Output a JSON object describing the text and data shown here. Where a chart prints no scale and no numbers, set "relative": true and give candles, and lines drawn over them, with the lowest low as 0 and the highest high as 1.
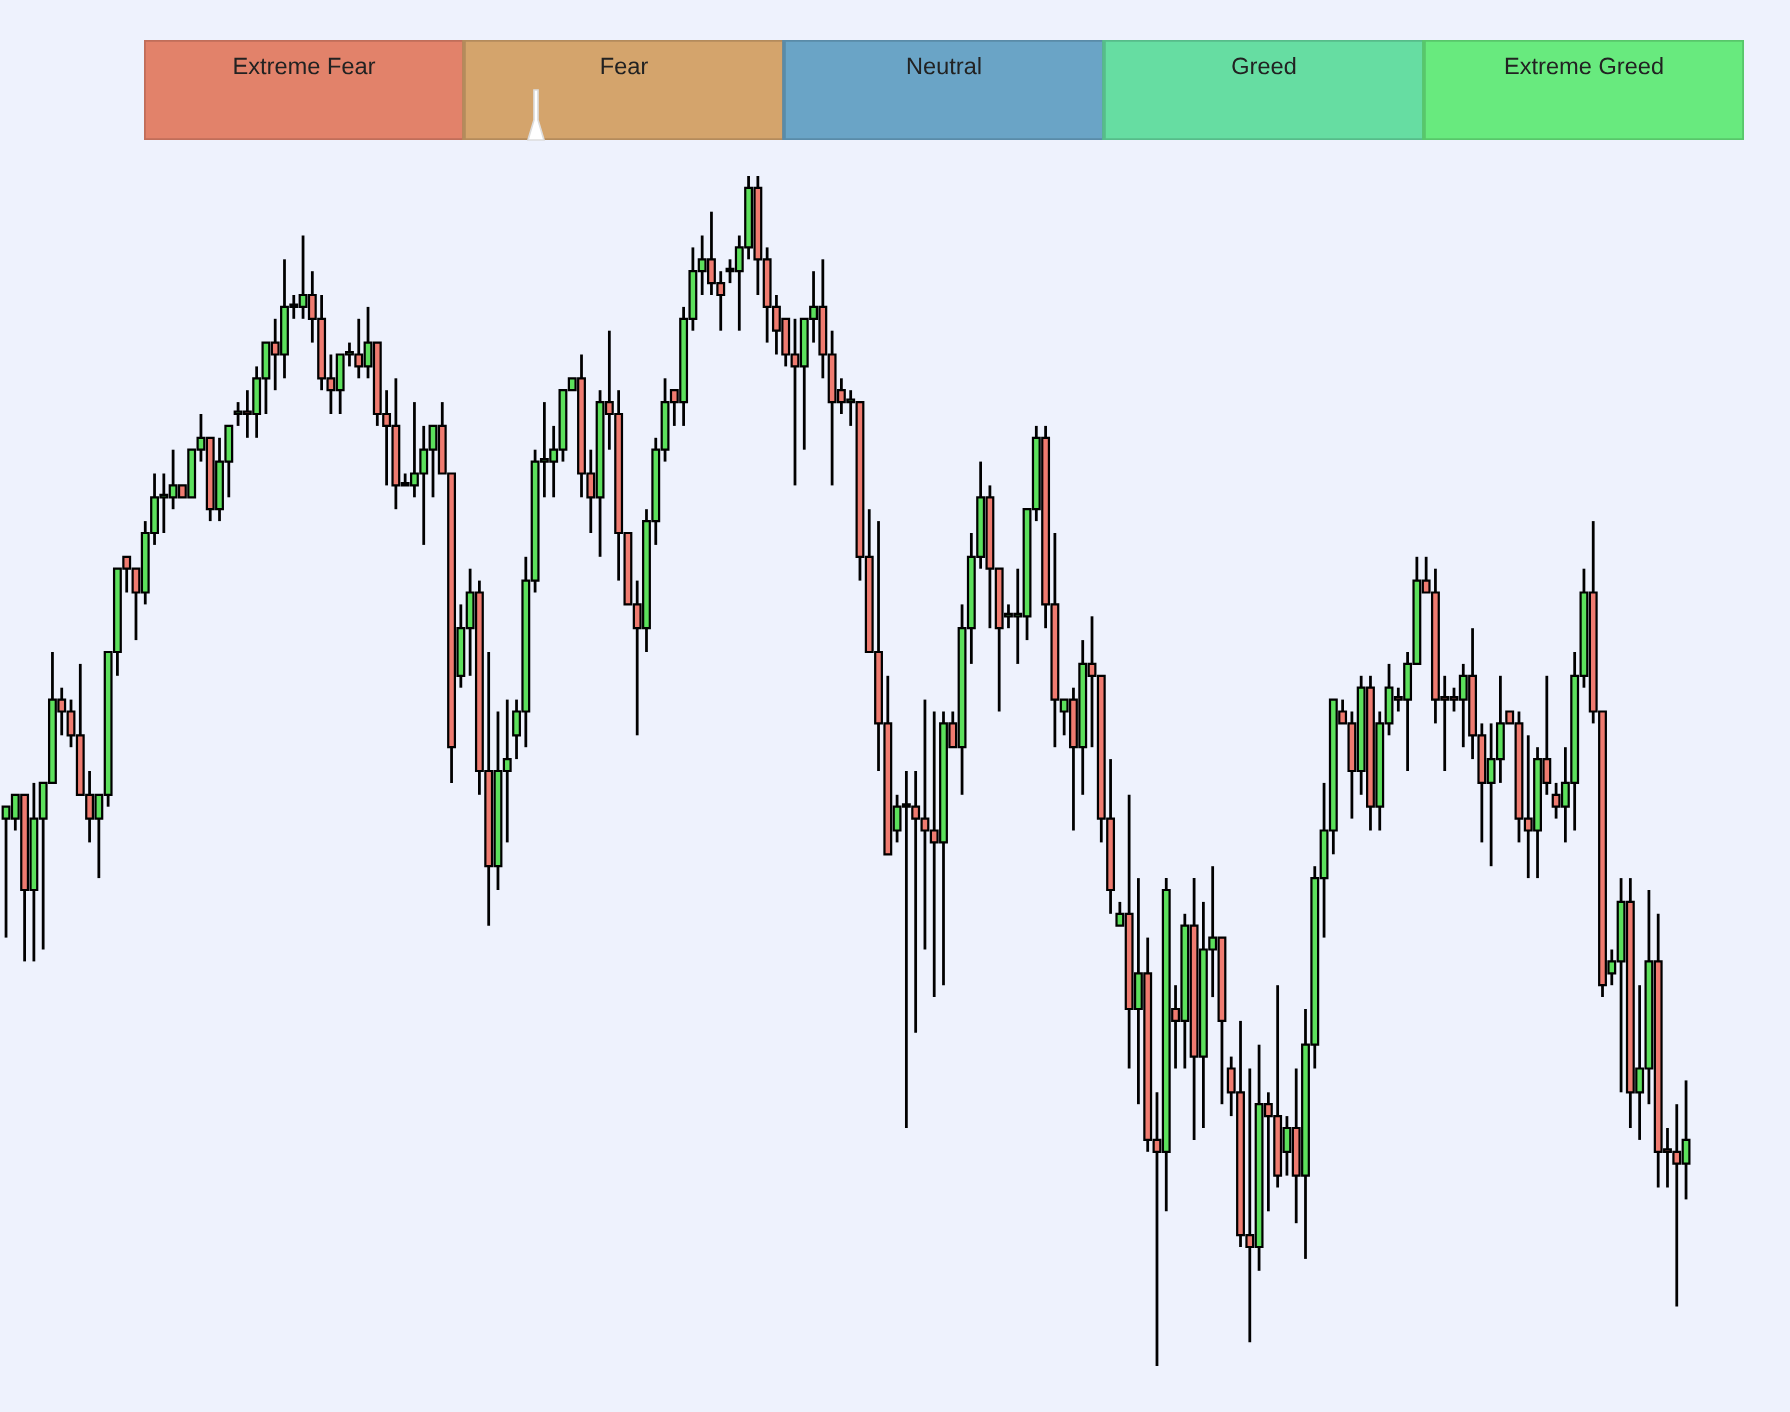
{
  "chart_data": [
    {
      "type": "other",
      "categories": [
        "Extreme Fear",
        "Fear",
        "Neutral",
        "Greed",
        "Extreme Greed"
      ],
      "colors": [
        "#e2826a",
        "#d4a46c",
        "#6aa4c6",
        "#66dda2",
        "#68ea7e"
      ]
    },
    {
      "type": "candlestick",
      "relative": true,
      "categories": [
        null,
        null,
        null,
        null,
        null,
        null,
        null,
        null,
        null,
        null,
        null,
        null,
        null,
        null,
        null,
        null,
        null,
        null,
        null,
        null,
        null,
        null,
        null,
        null,
        null,
        null,
        null,
        null,
        null,
        null,
        null,
        null,
        null,
        null,
        null,
        null,
        null,
        null,
        null,
        null,
        null,
        null,
        null,
        null,
        null,
        null,
        null,
        null,
        null,
        null,
        null,
        null,
        null,
        null,
        null,
        null,
        null,
        null,
        null,
        null,
        null,
        null,
        null,
        null,
        null,
        null,
        null,
        null,
        null,
        null,
        null,
        null,
        null,
        null,
        null,
        null,
        null,
        null,
        null,
        null,
        null,
        null,
        null,
        null,
        null,
        null,
        null,
        null,
        null,
        null,
        null,
        null,
        null,
        null,
        null,
        null,
        null,
        null,
        null,
        null,
        null,
        null,
        null,
        null,
        null,
        null,
        null,
        null,
        null,
        null,
        null,
        null,
        null,
        null,
        null,
        null,
        null,
        null,
        null,
        null,
        null,
        null,
        null,
        null,
        null,
        null,
        null,
        null,
        null,
        null,
        null,
        null,
        null,
        null,
        null,
        null,
        null,
        null,
        null,
        null,
        null,
        null,
        null,
        null,
        null,
        null,
        null,
        null,
        null,
        null,
        null,
        null,
        null,
        null,
        null,
        null,
        null,
        null,
        null,
        null,
        null,
        null,
        null,
        null,
        null,
        null,
        null,
        null,
        null,
        null,
        null,
        null,
        null,
        null,
        null,
        null,
        null,
        null,
        null,
        null,
        null,
        null
      ],
      "ohlc": [
        [
          0.46,
          0.47,
          0.36,
          0.47
        ],
        [
          0.46,
          0.48,
          0.45,
          0.48
        ],
        [
          0.48,
          0.48,
          0.34,
          0.4
        ],
        [
          0.4,
          0.49,
          0.34,
          0.46
        ],
        [
          0.46,
          0.49,
          0.35,
          0.49
        ],
        [
          0.49,
          0.6,
          0.49,
          0.56
        ],
        [
          0.56,
          0.57,
          0.53,
          0.55
        ],
        [
          0.55,
          0.56,
          0.52,
          0.53
        ],
        [
          0.53,
          0.59,
          0.48,
          0.48
        ],
        [
          0.48,
          0.5,
          0.44,
          0.46
        ],
        [
          0.46,
          0.48,
          0.41,
          0.48
        ],
        [
          0.48,
          0.6,
          0.47,
          0.6
        ],
        [
          0.6,
          0.67,
          0.58,
          0.67
        ],
        [
          0.68,
          0.68,
          0.65,
          0.67
        ],
        [
          0.67,
          0.67,
          0.61,
          0.65
        ],
        [
          0.65,
          0.71,
          0.64,
          0.7
        ],
        [
          0.7,
          0.75,
          0.69,
          0.73
        ],
        [
          0.73,
          0.75,
          0.7,
          0.73
        ],
        [
          0.73,
          0.77,
          0.72,
          0.74
        ],
        [
          0.74,
          0.74,
          0.73,
          0.73
        ],
        [
          0.73,
          0.77,
          0.73,
          0.77
        ],
        [
          0.77,
          0.8,
          0.76,
          0.78
        ],
        [
          0.78,
          0.78,
          0.71,
          0.72
        ],
        [
          0.72,
          0.78,
          0.71,
          0.76
        ],
        [
          0.76,
          0.79,
          0.73,
          0.79
        ],
        [
          0.8,
          0.81,
          0.79,
          0.8
        ],
        [
          0.8,
          0.82,
          0.78,
          0.8
        ],
        [
          0.8,
          0.84,
          0.78,
          0.83
        ],
        [
          0.83,
          0.86,
          0.8,
          0.86
        ],
        [
          0.86,
          0.88,
          0.82,
          0.85
        ],
        [
          0.85,
          0.93,
          0.83,
          0.89
        ],
        [
          0.89,
          0.9,
          0.88,
          0.89
        ],
        [
          0.89,
          0.95,
          0.88,
          0.9
        ],
        [
          0.9,
          0.92,
          0.86,
          0.88
        ],
        [
          0.88,
          0.9,
          0.82,
          0.83
        ],
        [
          0.83,
          0.85,
          0.8,
          0.82
        ],
        [
          0.82,
          0.85,
          0.8,
          0.85
        ],
        [
          0.85,
          0.86,
          0.84,
          0.85
        ],
        [
          0.85,
          0.88,
          0.83,
          0.84
        ],
        [
          0.84,
          0.89,
          0.83,
          0.86
        ],
        [
          0.86,
          0.86,
          0.79,
          0.8
        ],
        [
          0.8,
          0.82,
          0.74,
          0.79
        ],
        [
          0.79,
          0.83,
          0.72,
          0.74
        ],
        [
          0.74,
          0.75,
          0.74,
          0.74
        ],
        [
          0.74,
          0.81,
          0.73,
          0.75
        ],
        [
          0.75,
          0.79,
          0.69,
          0.77
        ],
        [
          0.77,
          0.79,
          0.73,
          0.79
        ],
        [
          0.79,
          0.81,
          0.75,
          0.75
        ],
        [
          0.75,
          0.75,
          0.49,
          0.52
        ],
        [
          0.58,
          0.64,
          0.57,
          0.62
        ],
        [
          0.62,
          0.67,
          0.58,
          0.65
        ],
        [
          0.65,
          0.66,
          0.48,
          0.5
        ],
        [
          0.5,
          0.6,
          0.37,
          0.42
        ],
        [
          0.42,
          0.55,
          0.4,
          0.5
        ],
        [
          0.5,
          0.56,
          0.44,
          0.51
        ],
        [
          0.53,
          0.56,
          0.51,
          0.55
        ],
        [
          0.55,
          0.68,
          0.52,
          0.66
        ],
        [
          0.66,
          0.77,
          0.65,
          0.76
        ],
        [
          0.76,
          0.81,
          0.73,
          0.76
        ],
        [
          0.76,
          0.79,
          0.73,
          0.77
        ],
        [
          0.77,
          0.82,
          0.76,
          0.82
        ],
        [
          0.82,
          0.83,
          0.82,
          0.83
        ],
        [
          0.83,
          0.85,
          0.73,
          0.75
        ],
        [
          0.75,
          0.77,
          0.7,
          0.73
        ],
        [
          0.73,
          0.82,
          0.68,
          0.81
        ],
        [
          0.81,
          0.87,
          0.77,
          0.8
        ],
        [
          0.8,
          0.82,
          0.66,
          0.7
        ],
        [
          0.7,
          0.7,
          0.64,
          0.64
        ],
        [
          0.64,
          0.66,
          0.53,
          0.62
        ],
        [
          0.62,
          0.72,
          0.6,
          0.71
        ],
        [
          0.71,
          0.78,
          0.69,
          0.77
        ],
        [
          0.77,
          0.83,
          0.76,
          0.81
        ],
        [
          0.82,
          0.82,
          0.79,
          0.81
        ],
        [
          0.81,
          0.89,
          0.79,
          0.88
        ],
        [
          0.88,
          0.94,
          0.87,
          0.92
        ],
        [
          0.92,
          0.95,
          0.9,
          0.93
        ],
        [
          0.93,
          0.97,
          0.9,
          0.91
        ],
        [
          0.91,
          0.92,
          0.87,
          0.9
        ],
        [
          0.92,
          0.93,
          0.91,
          0.92
        ],
        [
          0.92,
          0.95,
          0.87,
          0.94
        ],
        [
          0.94,
          1,
          0.93,
          0.99
        ],
        [
          0.99,
          1,
          0.9,
          0.93
        ],
        [
          0.93,
          0.94,
          0.86,
          0.89
        ],
        [
          0.89,
          0.9,
          0.85,
          0.87
        ],
        [
          0.88,
          0.88,
          0.84,
          0.85
        ],
        [
          0.85,
          0.88,
          0.74,
          0.84
        ],
        [
          0.84,
          0.88,
          0.77,
          0.88
        ],
        [
          0.88,
          0.92,
          0.86,
          0.89
        ],
        [
          0.89,
          0.93,
          0.83,
          0.85
        ],
        [
          0.85,
          0.87,
          0.74,
          0.81
        ],
        [
          0.82,
          0.83,
          0.8,
          0.81
        ],
        [
          0.81,
          0.82,
          0.79,
          0.81
        ],
        [
          0.81,
          0.81,
          0.66,
          0.68
        ],
        [
          0.68,
          0.72,
          0.6,
          0.6
        ],
        [
          0.6,
          0.71,
          0.5,
          0.54
        ],
        [
          0.54,
          0.58,
          0.43,
          0.43
        ],
        [
          0.45,
          0.48,
          0.44,
          0.47
        ],
        [
          0.47,
          0.5,
          0.2,
          0.47
        ],
        [
          0.47,
          0.5,
          0.28,
          0.46
        ],
        [
          0.46,
          0.56,
          0.35,
          0.45
        ],
        [
          0.45,
          0.55,
          0.31,
          0.44
        ],
        [
          0.44,
          0.55,
          0.32,
          0.54
        ],
        [
          0.54,
          0.55,
          0.52,
          0.52
        ],
        [
          0.52,
          0.64,
          0.48,
          0.62
        ],
        [
          0.62,
          0.7,
          0.59,
          0.68
        ],
        [
          0.68,
          0.76,
          0.67,
          0.73
        ],
        [
          0.73,
          0.74,
          0.62,
          0.67
        ],
        [
          0.67,
          0.67,
          0.55,
          0.62
        ],
        [
          0.63,
          0.64,
          0.62,
          0.63
        ],
        [
          0.63,
          0.67,
          0.59,
          0.63
        ],
        [
          0.63,
          0.72,
          0.61,
          0.72
        ],
        [
          0.72,
          0.79,
          0.71,
          0.78
        ],
        [
          0.78,
          0.79,
          0.62,
          0.64
        ],
        [
          0.64,
          0.7,
          0.52,
          0.56
        ],
        [
          0.55,
          0.56,
          0.53,
          0.56
        ],
        [
          0.56,
          0.57,
          0.45,
          0.52
        ],
        [
          0.52,
          0.61,
          0.48,
          0.59
        ],
        [
          0.59,
          0.63,
          0.52,
          0.58
        ],
        [
          0.58,
          0.58,
          0.44,
          0.46
        ],
        [
          0.46,
          0.51,
          0.38,
          0.4
        ],
        [
          0.37,
          0.39,
          0.37,
          0.38
        ],
        [
          0.38,
          0.48,
          0.25,
          0.3
        ],
        [
          0.3,
          0.41,
          0.22,
          0.33
        ],
        [
          0.33,
          0.36,
          0.18,
          0.19
        ],
        [
          0.19,
          0.23,
          0,
          0.18
        ],
        [
          0.18,
          0.41,
          0.13,
          0.4
        ],
        [
          0.3,
          0.32,
          0.25,
          0.29
        ],
        [
          0.29,
          0.38,
          0.25,
          0.37
        ],
        [
          0.37,
          0.41,
          0.19,
          0.26
        ],
        [
          0.26,
          0.39,
          0.2,
          0.35
        ],
        [
          0.35,
          0.42,
          0.31,
          0.36
        ],
        [
          0.36,
          0.36,
          0.22,
          0.29
        ],
        [
          0.25,
          0.26,
          0.21,
          0.23
        ],
        [
          0.23,
          0.29,
          0.1,
          0.11
        ],
        [
          0.11,
          0.25,
          0.02,
          0.1
        ],
        [
          0.1,
          0.27,
          0.08,
          0.22
        ],
        [
          0.22,
          0.23,
          0.13,
          0.21
        ],
        [
          0.21,
          0.32,
          0.15,
          0.16
        ],
        [
          0.18,
          0.21,
          0.16,
          0.2
        ],
        [
          0.2,
          0.25,
          0.12,
          0.16
        ],
        [
          0.16,
          0.3,
          0.09,
          0.27
        ],
        [
          0.27,
          0.42,
          0.25,
          0.41
        ],
        [
          0.41,
          0.49,
          0.36,
          0.45
        ],
        [
          0.45,
          0.56,
          0.43,
          0.56
        ],
        [
          0.55,
          0.56,
          0.54,
          0.54
        ],
        [
          0.54,
          0.55,
          0.46,
          0.5
        ],
        [
          0.5,
          0.58,
          0.48,
          0.57
        ],
        [
          0.57,
          0.58,
          0.45,
          0.47
        ],
        [
          0.47,
          0.55,
          0.45,
          0.54
        ],
        [
          0.54,
          0.59,
          0.53,
          0.57
        ],
        [
          0.56,
          0.57,
          0.55,
          0.56
        ],
        [
          0.56,
          0.6,
          0.5,
          0.59
        ],
        [
          0.59,
          0.68,
          0.59,
          0.66
        ],
        [
          0.66,
          0.68,
          0.65,
          0.65
        ],
        [
          0.65,
          0.67,
          0.54,
          0.56
        ],
        [
          0.56,
          0.58,
          0.5,
          0.56
        ],
        [
          0.56,
          0.57,
          0.55,
          0.56
        ],
        [
          0.56,
          0.59,
          0.52,
          0.58
        ],
        [
          0.58,
          0.62,
          0.51,
          0.53
        ],
        [
          0.53,
          0.54,
          0.44,
          0.49
        ],
        [
          0.49,
          0.54,
          0.42,
          0.51
        ],
        [
          0.51,
          0.58,
          0.49,
          0.54
        ],
        [
          0.55,
          0.55,
          0.54,
          0.54
        ],
        [
          0.54,
          0.55,
          0.44,
          0.46
        ],
        [
          0.46,
          0.53,
          0.41,
          0.45
        ],
        [
          0.45,
          0.52,
          0.41,
          0.51
        ],
        [
          0.51,
          0.58,
          0.48,
          0.49
        ],
        [
          0.48,
          0.49,
          0.46,
          0.47
        ],
        [
          0.47,
          0.52,
          0.44,
          0.49
        ],
        [
          0.49,
          0.6,
          0.45,
          0.58
        ],
        [
          0.58,
          0.67,
          0.57,
          0.65
        ],
        [
          0.65,
          0.71,
          0.54,
          0.55
        ],
        [
          0.55,
          0.55,
          0.31,
          0.32
        ],
        [
          0.33,
          0.35,
          0.32,
          0.34
        ],
        [
          0.34,
          0.41,
          0.23,
          0.39
        ],
        [
          0.39,
          0.41,
          0.2,
          0.23
        ],
        [
          0.23,
          0.32,
          0.19,
          0.25
        ],
        [
          0.25,
          0.4,
          0.22,
          0.34
        ],
        [
          0.34,
          0.38,
          0.15,
          0.18
        ],
        [
          0.18,
          0.2,
          0.15,
          0.18
        ],
        [
          0.18,
          0.22,
          0.05,
          0.17
        ],
        [
          0.17,
          0.24,
          0.14,
          0.19
        ]
      ],
      "colors": [
        "#5ce05c",
        "#5ce05c",
        "#ef7b70",
        "#5ce05c",
        "#5ce05c",
        "#5ce05c",
        "#ef7b70",
        "#ef7b70",
        "#ef7b70",
        "#ef7b70",
        "#5ce05c",
        "#5ce05c",
        "#5ce05c",
        "#ef7b70",
        "#ef7b70",
        "#5ce05c",
        "#5ce05c",
        "#5ce05c",
        "#5ce05c",
        "#ef7b70",
        "#5ce05c",
        "#5ce05c",
        "#ef7b70",
        "#5ce05c",
        "#5ce05c",
        "#5ce05c",
        "#ef7b70",
        "#5ce05c",
        "#5ce05c",
        "#ef7b70",
        "#5ce05c",
        "#5ce05c",
        "#5ce05c",
        "#ef7b70",
        "#ef7b70",
        "#ef7b70",
        "#5ce05c",
        "#5ce05c",
        "#ef7b70",
        "#5ce05c",
        "#ef7b70",
        "#ef7b70",
        "#ef7b70",
        "#ef7b70",
        "#5ce05c",
        "#5ce05c",
        "#5ce05c",
        "#ef7b70",
        "#ef7b70",
        "#5ce05c",
        "#5ce05c",
        "#ef7b70",
        "#ef7b70",
        "#5ce05c",
        "#5ce05c",
        "#5ce05c",
        "#5ce05c",
        "#5ce05c",
        "#5ce05c",
        "#5ce05c",
        "#5ce05c",
        "#5ce05c",
        "#ef7b70",
        "#ef7b70",
        "#5ce05c",
        "#ef7b70",
        "#ef7b70",
        "#ef7b70",
        "#ef7b70",
        "#5ce05c",
        "#5ce05c",
        "#5ce05c",
        "#ef7b70",
        "#5ce05c",
        "#5ce05c",
        "#5ce05c",
        "#ef7b70",
        "#ef7b70",
        "#5ce05c",
        "#5ce05c",
        "#5ce05c",
        "#ef7b70",
        "#ef7b70",
        "#ef7b70",
        "#ef7b70",
        "#ef7b70",
        "#5ce05c",
        "#5ce05c",
        "#ef7b70",
        "#ef7b70",
        "#ef7b70",
        "#5ce05c",
        "#ef7b70",
        "#ef7b70",
        "#ef7b70",
        "#ef7b70",
        "#5ce05c",
        "#ef7b70",
        "#ef7b70",
        "#ef7b70",
        "#ef7b70",
        "#5ce05c",
        "#ef7b70",
        "#5ce05c",
        "#5ce05c",
        "#5ce05c",
        "#ef7b70",
        "#ef7b70",
        "#5ce05c",
        "#5ce05c",
        "#5ce05c",
        "#5ce05c",
        "#ef7b70",
        "#ef7b70",
        "#5ce05c",
        "#ef7b70",
        "#5ce05c",
        "#ef7b70",
        "#ef7b70",
        "#ef7b70",
        "#5ce05c",
        "#ef7b70",
        "#5ce05c",
        "#ef7b70",
        "#ef7b70",
        "#5ce05c",
        "#ef7b70",
        "#5ce05c",
        "#ef7b70",
        "#5ce05c",
        "#5ce05c",
        "#ef7b70",
        "#ef7b70",
        "#ef7b70",
        "#ef7b70",
        "#5ce05c",
        "#ef7b70",
        "#ef7b70",
        "#5ce05c",
        "#ef7b70",
        "#5ce05c",
        "#5ce05c",
        "#5ce05c",
        "#5ce05c",
        "#ef7b70",
        "#ef7b70",
        "#5ce05c",
        "#ef7b70",
        "#5ce05c",
        "#5ce05c",
        "#ef7b70",
        "#5ce05c",
        "#5ce05c",
        "#ef7b70",
        "#ef7b70",
        "#ef7b70",
        "#ef7b70",
        "#5ce05c",
        "#ef7b70",
        "#ef7b70",
        "#5ce05c",
        "#5ce05c",
        "#ef7b70",
        "#ef7b70",
        "#ef7b70",
        "#5ce05c",
        "#ef7b70",
        "#ef7b70",
        "#5ce05c",
        "#5ce05c",
        "#5ce05c",
        "#ef7b70",
        "#ef7b70",
        "#5ce05c",
        "#5ce05c",
        "#ef7b70",
        "#5ce05c",
        "#5ce05c",
        "#ef7b70",
        "#ef7b70",
        "#ef7b70",
        "#5ce05c"
      ]
    }
  ]
}
